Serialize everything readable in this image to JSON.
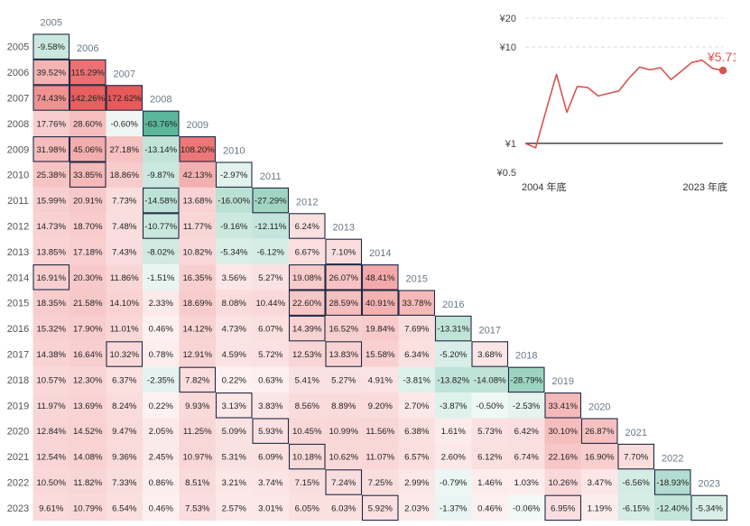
{
  "chart_data": [
    {
      "type": "heatmap",
      "title": "",
      "years": [
        "2005",
        "2006",
        "2007",
        "2008",
        "2009",
        "2010",
        "2011",
        "2012",
        "2013",
        "2014",
        "2015",
        "2016",
        "2017",
        "2018",
        "2019",
        "2020",
        "2021",
        "2022",
        "2023"
      ],
      "rows": [
        [
          "-9.58%"
        ],
        [
          "39.52%",
          "115.29%"
        ],
        [
          "74.43%",
          "142.26%",
          "172.62%"
        ],
        [
          "17.76%",
          "28.60%",
          "-0.60%",
          "-63.76%"
        ],
        [
          "31.98%",
          "45.06%",
          "27.18%",
          "-13.14%",
          "108.20%"
        ],
        [
          "25.38%",
          "33.85%",
          "18.86%",
          "-9.87%",
          "42.13%",
          "-2.97%"
        ],
        [
          "15.99%",
          "20.91%",
          "7.73%",
          "-14.58%",
          "13.68%",
          "-16.00%",
          "-27.29%"
        ],
        [
          "14.73%",
          "18.70%",
          "7.48%",
          "-10.77%",
          "11.77%",
          "-9.16%",
          "-12.11%",
          "6.24%"
        ],
        [
          "13.85%",
          "17.18%",
          "7.43%",
          "-8.02%",
          "10.82%",
          "-5.34%",
          "-6.12%",
          "6.67%",
          "7.10%"
        ],
        [
          "16.91%",
          "20.30%",
          "11.86%",
          "-1.51%",
          "16.35%",
          "3.56%",
          "5.27%",
          "19.08%",
          "26.07%",
          "48.41%"
        ],
        [
          "18.35%",
          "21.58%",
          "14.10%",
          "2.33%",
          "18.69%",
          "8.08%",
          "10.44%",
          "22.60%",
          "28.59%",
          "40.91%",
          "33.78%"
        ],
        [
          "15.32%",
          "17.90%",
          "11.01%",
          "0.46%",
          "14.12%",
          "4.73%",
          "6.07%",
          "14.39%",
          "16.52%",
          "19.84%",
          "7.69%",
          "-13.31%"
        ],
        [
          "14.38%",
          "16.64%",
          "10.32%",
          "0.78%",
          "12.91%",
          "4.59%",
          "5.72%",
          "12.53%",
          "13.83%",
          "15.58%",
          "6.34%",
          "-5.20%",
          "3.68%"
        ],
        [
          "10.57%",
          "12.30%",
          "6.37%",
          "-2.35%",
          "7.82%",
          "0.22%",
          "0.63%",
          "5.41%",
          "5.27%",
          "4.91%",
          "-3.81%",
          "-13.82%",
          "-14.08%",
          "-28.79%"
        ],
        [
          "11.97%",
          "13.69%",
          "8.24%",
          "0.22%",
          "9.93%",
          "3.13%",
          "3.83%",
          "8.56%",
          "8.89%",
          "9.20%",
          "2.70%",
          "-3.87%",
          "-0.50%",
          "-2.53%",
          "33.41%"
        ],
        [
          "12.84%",
          "14.52%",
          "9.47%",
          "2.05%",
          "11.25%",
          "5.09%",
          "5.93%",
          "10.45%",
          "10.99%",
          "11.56%",
          "6.38%",
          "1.61%",
          "5.73%",
          "6.42%",
          "30.10%",
          "26.87%"
        ],
        [
          "12.54%",
          "14.08%",
          "9.36%",
          "2.45%",
          "10.97%",
          "5.31%",
          "6.09%",
          "10.18%",
          "10.62%",
          "11.07%",
          "6.57%",
          "2.60%",
          "6.12%",
          "6.74%",
          "22.16%",
          "16.90%",
          "7.70%"
        ],
        [
          "10.50%",
          "11.82%",
          "7.33%",
          "0.86%",
          "8.51%",
          "3.21%",
          "3.74%",
          "7.15%",
          "7.24%",
          "7.25%",
          "2.99%",
          "-0.79%",
          "1.46%",
          "1.03%",
          "10.26%",
          "3.47%",
          "-6.56%",
          "-18.93%"
        ],
        [
          "9.61%",
          "10.79%",
          "6.54%",
          "0.46%",
          "7.53%",
          "2.57%",
          "3.01%",
          "6.05%",
          "6.03%",
          "5.92%",
          "2.03%",
          "-1.37%",
          "0.46%",
          "-0.06%",
          "6.95%",
          "1.19%",
          "-6.15%",
          "-12.40%",
          "-5.34%"
        ]
      ],
      "boxed": [
        [
          0,
          0
        ],
        [
          1,
          1
        ],
        [
          2,
          2
        ],
        [
          3,
          3
        ],
        [
          4,
          4
        ],
        [
          5,
          5
        ],
        [
          6,
          6
        ],
        [
          7,
          7
        ],
        [
          8,
          8
        ],
        [
          9,
          9
        ],
        [
          10,
          10
        ],
        [
          11,
          11
        ],
        [
          12,
          12
        ],
        [
          13,
          13
        ],
        [
          14,
          14
        ],
        [
          15,
          15
        ],
        [
          16,
          16
        ],
        [
          17,
          17
        ],
        [
          18,
          18
        ],
        [
          1,
          0
        ],
        [
          2,
          0
        ],
        [
          2,
          1
        ],
        [
          4,
          0
        ],
        [
          4,
          1
        ],
        [
          5,
          1
        ],
        [
          6,
          3
        ],
        [
          7,
          3
        ],
        [
          9,
          0
        ],
        [
          12,
          2
        ],
        [
          16,
          7
        ],
        [
          14,
          5
        ],
        [
          13,
          4
        ],
        [
          15,
          6
        ],
        [
          17,
          8
        ],
        [
          18,
          9
        ],
        [
          18,
          14
        ],
        [
          9,
          7
        ],
        [
          9,
          8
        ],
        [
          10,
          7
        ],
        [
          10,
          8
        ],
        [
          10,
          9
        ],
        [
          11,
          7
        ],
        [
          12,
          8
        ]
      ],
      "colors": {
        "positive": "#e8595a",
        "negative": "#5bb79a",
        "neutral": "#ffffff"
      }
    },
    {
      "type": "line",
      "title": "",
      "y_scale": "log",
      "y_ticks": [
        "¥20",
        "¥10",
        "¥1",
        "¥0.5"
      ],
      "x_tick_labels": [
        "2004 年底",
        "2023 年底"
      ],
      "x": [
        2004,
        2005,
        2006,
        2007,
        2008,
        2009,
        2010,
        2011,
        2012,
        2013,
        2014,
        2015,
        2016,
        2017,
        2018,
        2019,
        2020,
        2021,
        2022,
        2023
      ],
      "y": [
        1.0,
        0.9,
        2.2,
        5.2,
        2.1,
        3.9,
        3.8,
        3.1,
        3.3,
        3.5,
        4.8,
        6.2,
        5.8,
        6.1,
        4.6,
        5.6,
        6.9,
        7.3,
        6.0,
        5.71
      ],
      "end_label": "¥5.71",
      "colors": {
        "line": "#d9534f",
        "baseline": "#222222",
        "grid": "#dddddd"
      }
    }
  ]
}
